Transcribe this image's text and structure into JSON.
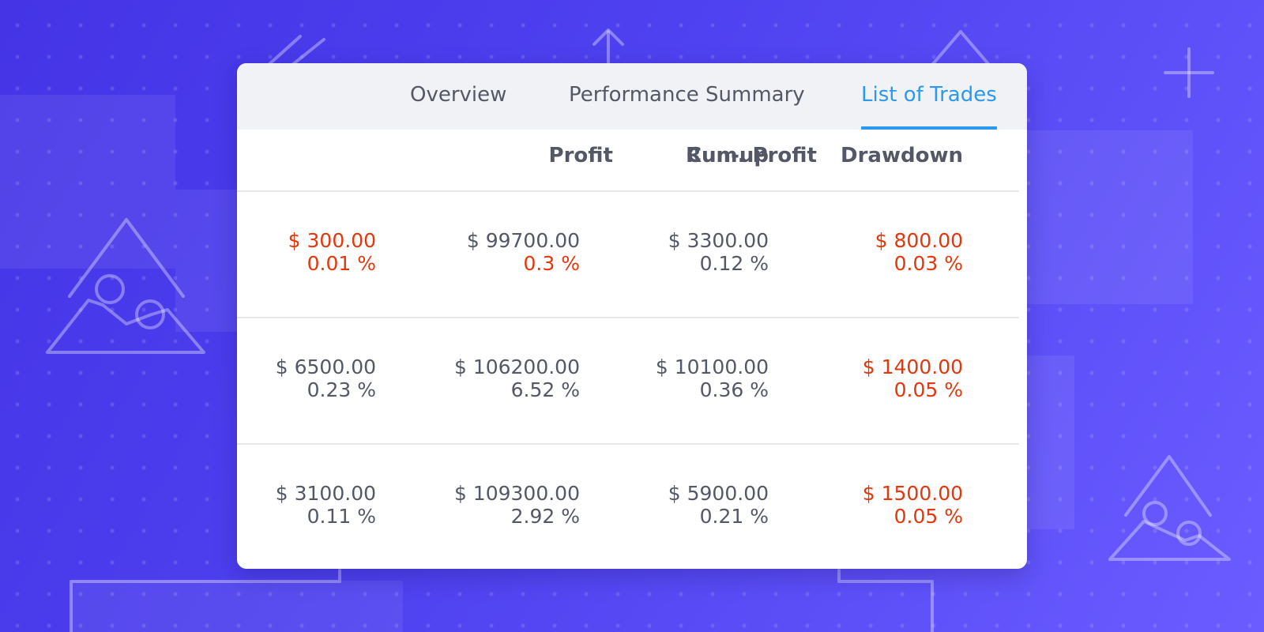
{
  "tabs": [
    {
      "label": "Overview",
      "active": false
    },
    {
      "label": "Performance Summary",
      "active": false
    },
    {
      "label": "List of Trades",
      "active": true
    }
  ],
  "columns": [
    "Profit",
    "Cum. Profit",
    "Run-up",
    "Drawdown"
  ],
  "rows": [
    {
      "profit": {
        "value": "$ 300.00",
        "percent": "0.01 %",
        "negative": true
      },
      "cum_profit": {
        "value": "$ 99700.00",
        "percent": "0.3 %",
        "percent_negative": true
      },
      "run_up": {
        "value": "$ 3300.00",
        "percent": "0.12 %"
      },
      "drawdown": {
        "value": "$ 800.00",
        "percent": "0.03 %",
        "negative": true
      }
    },
    {
      "profit": {
        "value": "$ 6500.00",
        "percent": "0.23 %"
      },
      "cum_profit": {
        "value": "$ 106200.00",
        "percent": "6.52 %"
      },
      "run_up": {
        "value": "$ 10100.00",
        "percent": "0.36 %"
      },
      "drawdown": {
        "value": "$ 1400.00",
        "percent": "0.05 %",
        "negative": true
      }
    },
    {
      "profit": {
        "value": "$ 3100.00",
        "percent": "0.11 %"
      },
      "cum_profit": {
        "value": "$ 109300.00",
        "percent": "2.92 %"
      },
      "run_up": {
        "value": "$ 5900.00",
        "percent": "0.21 %"
      },
      "drawdown": {
        "value": "$ 1500.00",
        "percent": "0.05 %",
        "negative": true
      }
    }
  ],
  "colors": {
    "accent": "#2a99ee",
    "negative": "#e5360c",
    "text": "#545866",
    "tab_bar": "#f1f2f5",
    "background": "#4f42f0"
  },
  "decorations": [
    "mountain-icon",
    "arrow-up-icon",
    "plus-icon",
    "zigzag-icon"
  ]
}
